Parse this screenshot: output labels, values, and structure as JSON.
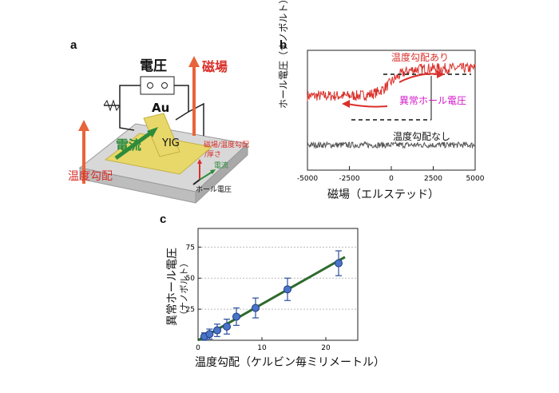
{
  "panel_a": {
    "letter": "a",
    "voltage_label": "電圧",
    "field_label": "磁場",
    "gold_label": "Au",
    "current_label": "電流",
    "substrate_label": "YIG",
    "gradient_label": "温度勾配",
    "axes_legend": {
      "line1": "磁場/温度勾配",
      "line2": "/厚さ",
      "current": "電流",
      "hall": "ホール電圧"
    },
    "colors": {
      "red": "#d9302a",
      "green": "#2e8b3a",
      "gold": "#e8d86a",
      "orange": "#e8643a"
    }
  },
  "chart_data": [
    {
      "panel": "b",
      "type": "line",
      "xlabel": "磁場（エルステッド）",
      "ylabel": "ホール電圧（ナノボルト）",
      "xlim": [
        -5000,
        5000
      ],
      "xticks": [
        -5000,
        -2500,
        0,
        2500,
        5000
      ],
      "series": [
        {
          "name": "温度勾配あり",
          "color": "#d9302a",
          "shape": "tanh-step",
          "low_level": 0.62,
          "high_level": 0.85
        },
        {
          "name": "温度勾配なし",
          "color": "#555555",
          "shape": "flat",
          "level": 0.21
        }
      ],
      "annotations": {
        "difference": "異常ホール電圧"
      }
    },
    {
      "panel": "c",
      "type": "scatter",
      "xlabel": "温度勾配（ケルビン毎ミリメートル）",
      "ylabel": "異常ホール電圧",
      "ylabel_unit": "（ナノボルト）",
      "xlim": [
        0,
        25
      ],
      "ylim": [
        0,
        90
      ],
      "xticks": [
        0,
        10,
        20
      ],
      "yticks": [
        25,
        50,
        75
      ],
      "points": [
        {
          "x": 1.0,
          "y": 3,
          "err": 3
        },
        {
          "x": 1.8,
          "y": 5,
          "err": 4
        },
        {
          "x": 3.0,
          "y": 8,
          "err": 5
        },
        {
          "x": 4.5,
          "y": 11,
          "err": 6
        },
        {
          "x": 6.0,
          "y": 19,
          "err": 7
        },
        {
          "x": 9.0,
          "y": 26,
          "err": 8
        },
        {
          "x": 14.0,
          "y": 41,
          "err": 9
        },
        {
          "x": 22.0,
          "y": 62,
          "err": 10
        }
      ],
      "fit": {
        "x": [
          0,
          23
        ],
        "y": [
          0,
          67
        ],
        "color": "#2e6b2e"
      },
      "marker_color": "#4a74c9"
    }
  ]
}
